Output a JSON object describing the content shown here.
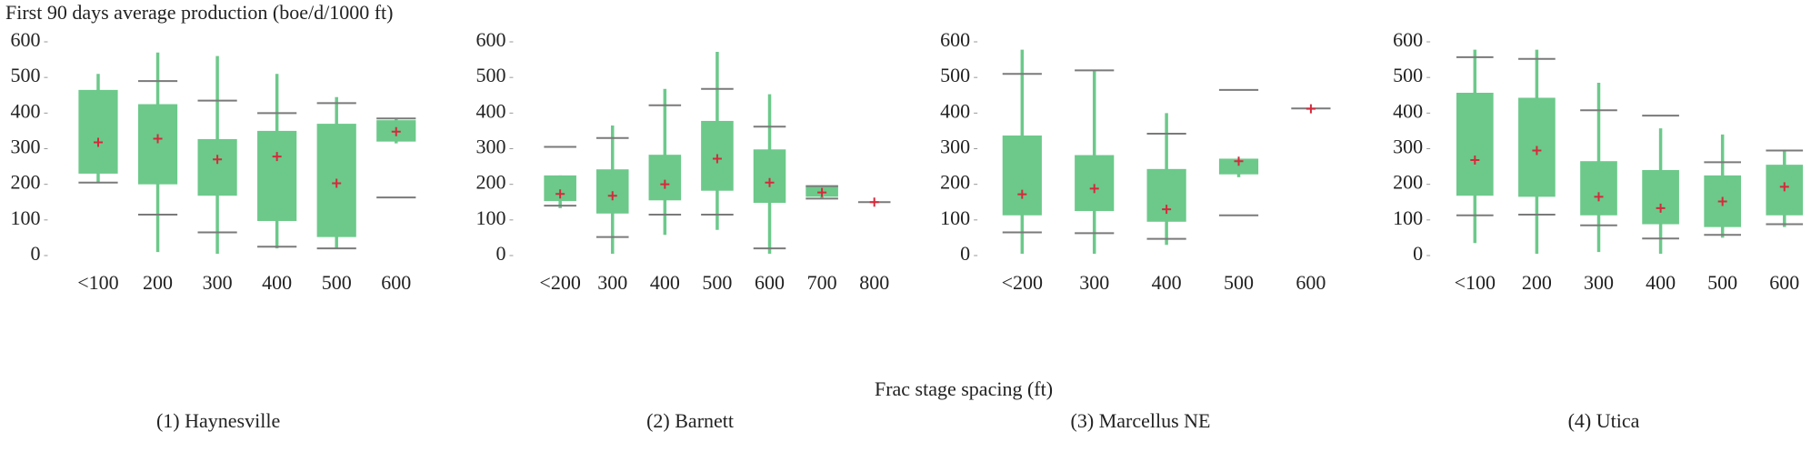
{
  "ylabel": "First 90 days average production (boe/d/1000 ft)",
  "xlabel": "Frac stage spacing (ft)",
  "chart_data": [
    {
      "type": "box",
      "title": "(1) Haynesville",
      "color": "#6cc98a",
      "mean_color": "#d42a3c",
      "pct_color": "#7a7a7a",
      "categories": [
        "<100",
        "200",
        "300",
        "400",
        "500",
        "600"
      ],
      "min": [
        205,
        10,
        5,
        20,
        20,
        315
      ],
      "q1": [
        230,
        200,
        168,
        97,
        52,
        320
      ],
      "q3": [
        465,
        425,
        327,
        350,
        370,
        380
      ],
      "max": [
        510,
        570,
        560,
        510,
        445,
        385
      ],
      "mean": [
        318,
        328,
        270,
        278,
        203,
        348
      ],
      "p10": [
        205,
        115,
        65,
        25,
        20,
        163
      ],
      "p90": [
        null,
        490,
        435,
        400,
        428,
        385
      ],
      "ylim": [
        0,
        600
      ],
      "yticks": [
        0,
        100,
        200,
        300,
        400,
        500,
        600
      ]
    },
    {
      "type": "box",
      "title": "(2) Barnett",
      "color": "#6cc98a",
      "mean_color": "#d42a3c",
      "pct_color": "#7a7a7a",
      "categories": [
        "<200",
        "300",
        "400",
        "500",
        "600",
        "700",
        "800"
      ],
      "min": [
        133,
        5,
        58,
        72,
        5,
        160,
        null
      ],
      "q1": [
        153,
        118,
        155,
        182,
        148,
        165,
        null
      ],
      "q3": [
        225,
        242,
        283,
        378,
        298,
        195,
        null
      ],
      "max": [
        225,
        365,
        468,
        572,
        453,
        197,
        null
      ],
      "mean": [
        173,
        168,
        200,
        272,
        205,
        177,
        150
      ],
      "p10": [
        140,
        52,
        115,
        115,
        20,
        160,
        150
      ],
      "p90": [
        305,
        330,
        422,
        468,
        362,
        195,
        null
      ],
      "ylim": [
        0,
        600
      ],
      "yticks": [
        0,
        100,
        200,
        300,
        400,
        500,
        600
      ]
    },
    {
      "type": "box",
      "title": "(3) Marcellus NE",
      "color": "#6cc98a",
      "mean_color": "#d42a3c",
      "pct_color": "#7a7a7a",
      "categories": [
        "<200",
        "300",
        "400",
        "500",
        "600"
      ],
      "min": [
        5,
        5,
        30,
        220,
        null
      ],
      "q1": [
        113,
        125,
        95,
        228,
        null
      ],
      "q3": [
        337,
        282,
        243,
        272,
        null
      ],
      "max": [
        578,
        518,
        400,
        272,
        null
      ],
      "mean": [
        172,
        188,
        130,
        265,
        412
      ],
      "p10": [
        65,
        63,
        47,
        113,
        413
      ],
      "p90": [
        510,
        520,
        342,
        465,
        null
      ],
      "ylim": [
        0,
        600
      ],
      "yticks": [
        0,
        100,
        200,
        300,
        400,
        500,
        600
      ]
    },
    {
      "type": "box",
      "title": "(4) Utica",
      "color": "#6cc98a",
      "mean_color": "#d42a3c",
      "pct_color": "#7a7a7a",
      "categories": [
        "<100",
        "200",
        "300",
        "400",
        "500",
        "600"
      ],
      "min": [
        35,
        5,
        10,
        5,
        50,
        80
      ],
      "q1": [
        168,
        165,
        113,
        88,
        80,
        113
      ],
      "q3": [
        457,
        443,
        265,
        240,
        225,
        255
      ],
      "max": [
        578,
        578,
        485,
        357,
        340,
        297
      ],
      "mean": [
        268,
        295,
        165,
        133,
        152,
        193
      ],
      "p10": [
        113,
        115,
        85,
        48,
        58,
        88
      ],
      "p90": [
        557,
        552,
        408,
        393,
        262,
        295
      ],
      "ylim": [
        0,
        600
      ],
      "yticks": [
        0,
        100,
        200,
        300,
        400,
        500,
        600
      ]
    }
  ]
}
